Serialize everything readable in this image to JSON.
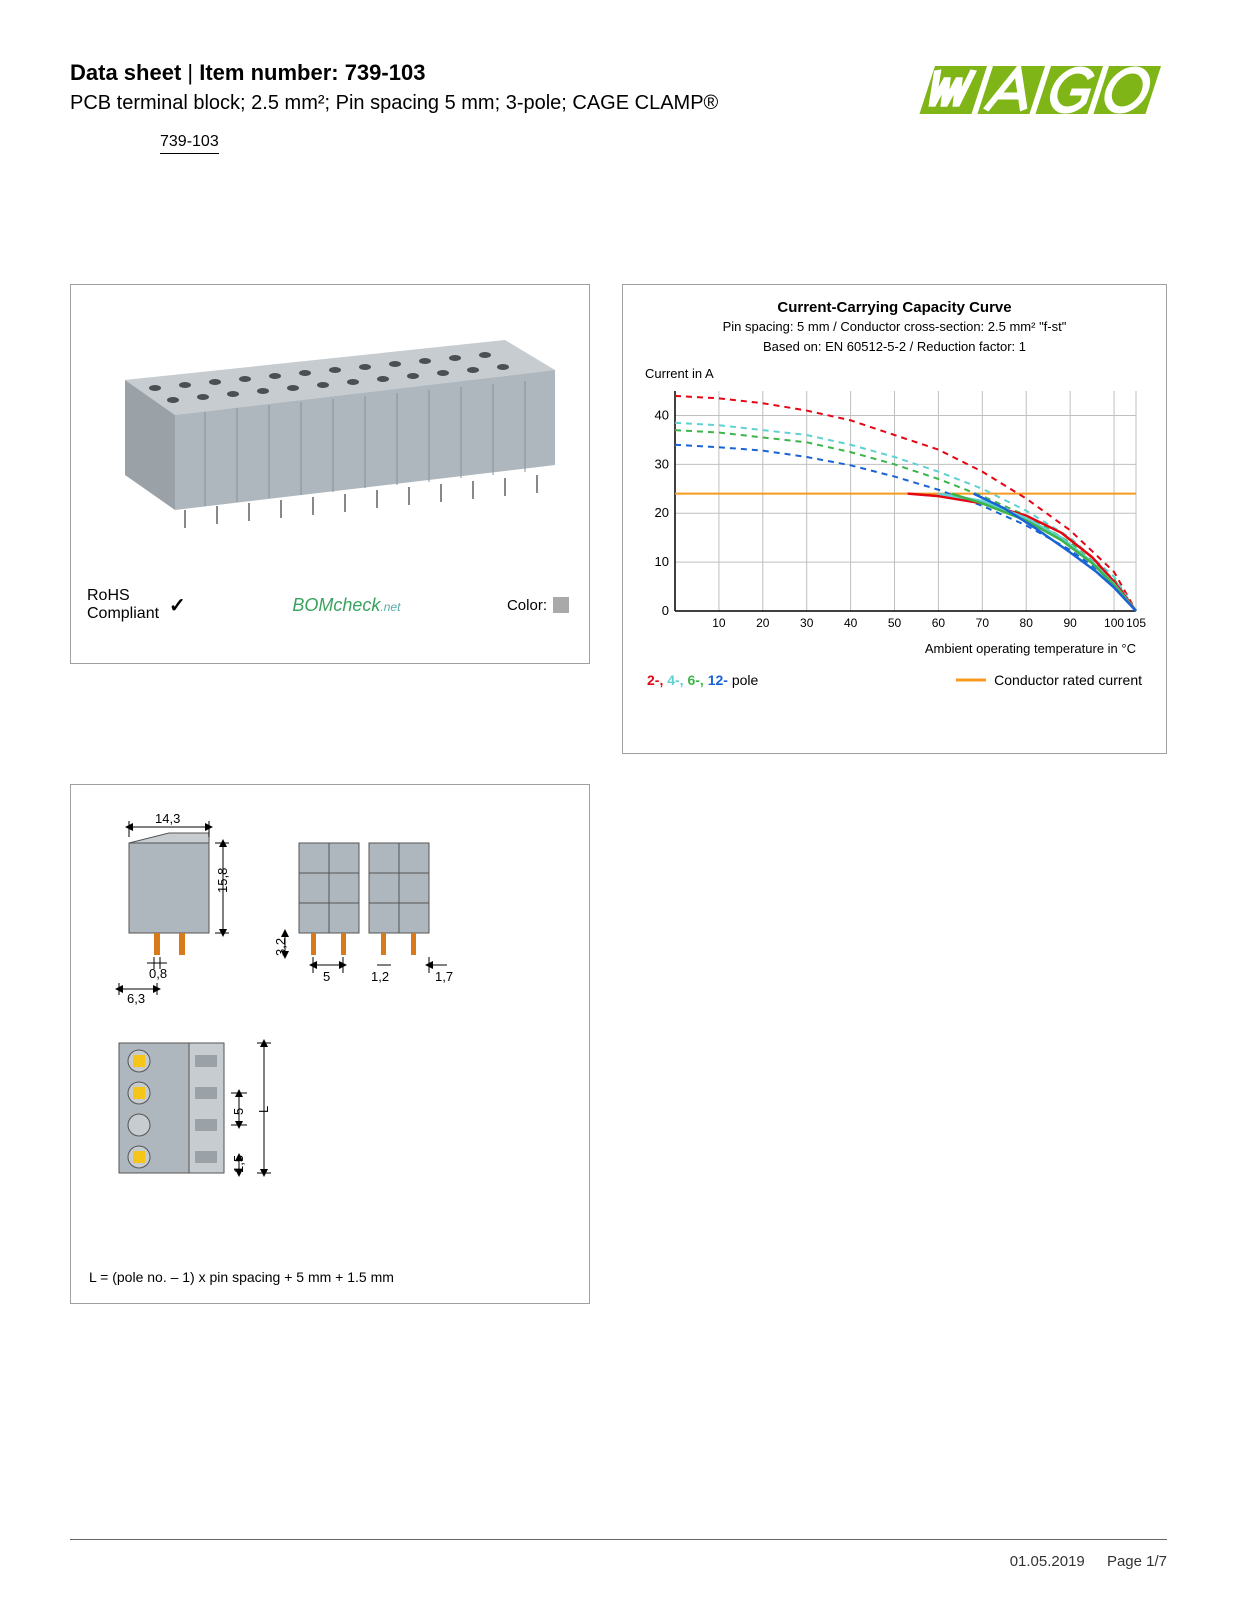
{
  "header": {
    "prefix": "Data sheet",
    "separator": " | ",
    "item_label": "Item number: 739-103",
    "subtitle": "PCB terminal block; 2.5 mm²; Pin spacing 5 mm; 3-pole; CAGE CLAMP®",
    "item_link": "739-103"
  },
  "logo": {
    "text": "WAGO",
    "colors": [
      "#7fb516",
      "#7fb516",
      "#7fb516",
      "#7fb516"
    ]
  },
  "product_panel": {
    "rohs_line1": "RoHS",
    "rohs_line2": "Compliant",
    "bomcheck": "BOMcheck",
    "bomcheck_suffix": ".net",
    "color_label": "Color:",
    "swatch_color": "#a9a9a9",
    "block_color": "#aeb7bd",
    "hole_color": "#4a4f53"
  },
  "chart": {
    "title": "Current-Carrying Capacity Curve",
    "sub1": "Pin spacing: 5 mm / Conductor cross-section: 2.5 mm² \"f-st\"",
    "sub2": "Based on: EN 60512-5-2 / Reduction factor: 1",
    "y_label": "Current in A",
    "x_label": "Ambient operating temperature in °C",
    "ylim": [
      0,
      45
    ],
    "yticks": [
      0,
      10,
      20,
      30,
      40
    ],
    "xlim": [
      0,
      105
    ],
    "xticks": [
      10,
      20,
      30,
      40,
      50,
      60,
      70,
      80,
      90,
      100,
      105
    ],
    "grid_color": "#bfbfbf",
    "axis_color": "#000000",
    "background": "#ffffff",
    "rated_current": 24,
    "rated_color": "#f59a1c",
    "series": [
      {
        "name": "2-pole",
        "color": "#e30613",
        "dash": "6,5",
        "points": [
          [
            0,
            44
          ],
          [
            10,
            43.5
          ],
          [
            20,
            42.5
          ],
          [
            30,
            41
          ],
          [
            40,
            39
          ],
          [
            50,
            36
          ],
          [
            60,
            33
          ],
          [
            70,
            28.5
          ],
          [
            80,
            23
          ],
          [
            90,
            16.5
          ],
          [
            100,
            8
          ],
          [
            105,
            0
          ]
        ]
      },
      {
        "name": "4-pole",
        "color": "#5fd1d1",
        "dash": "6,5",
        "points": [
          [
            0,
            38.5
          ],
          [
            10,
            38
          ],
          [
            20,
            37
          ],
          [
            30,
            36
          ],
          [
            40,
            34
          ],
          [
            50,
            31.5
          ],
          [
            60,
            28.5
          ],
          [
            70,
            25
          ],
          [
            80,
            20.5
          ],
          [
            90,
            15
          ],
          [
            100,
            7
          ],
          [
            105,
            0
          ]
        ]
      },
      {
        "name": "6-pole",
        "color": "#3bb54a",
        "dash": "6,5",
        "points": [
          [
            0,
            37
          ],
          [
            10,
            36.5
          ],
          [
            20,
            35.5
          ],
          [
            30,
            34.5
          ],
          [
            40,
            32.5
          ],
          [
            50,
            30
          ],
          [
            60,
            27
          ],
          [
            70,
            23.5
          ],
          [
            80,
            19.5
          ],
          [
            90,
            14
          ],
          [
            100,
            6.5
          ],
          [
            105,
            0
          ]
        ]
      },
      {
        "name": "12-pole",
        "color": "#1a63d6",
        "dash": "6,5",
        "points": [
          [
            0,
            34
          ],
          [
            10,
            33.5
          ],
          [
            20,
            32.8
          ],
          [
            30,
            31.5
          ],
          [
            40,
            29.8
          ],
          [
            50,
            27.5
          ],
          [
            60,
            24.8
          ],
          [
            70,
            21.5
          ],
          [
            80,
            17.5
          ],
          [
            90,
            12.5
          ],
          [
            100,
            6
          ],
          [
            105,
            0
          ]
        ]
      }
    ],
    "solid_series": [
      {
        "name": "2-pole-solid",
        "color": "#e30613",
        "points": [
          [
            53,
            24
          ],
          [
            60,
            23.5
          ],
          [
            70,
            22
          ],
          [
            80,
            19.5
          ],
          [
            88,
            16
          ],
          [
            95,
            11
          ],
          [
            100,
            6
          ],
          [
            105,
            0
          ]
        ]
      },
      {
        "name": "4-pole-solid",
        "color": "#5fd1d1",
        "points": [
          [
            60,
            24
          ],
          [
            70,
            22.5
          ],
          [
            80,
            19
          ],
          [
            88,
            15
          ],
          [
            95,
            10
          ],
          [
            100,
            5.5
          ],
          [
            105,
            0
          ]
        ]
      },
      {
        "name": "6-pole-solid",
        "color": "#3bb54a",
        "points": [
          [
            63,
            24
          ],
          [
            70,
            22
          ],
          [
            80,
            18.5
          ],
          [
            88,
            14.5
          ],
          [
            95,
            9.8
          ],
          [
            100,
            5.3
          ],
          [
            105,
            0
          ]
        ]
      },
      {
        "name": "12-pole-solid",
        "color": "#1a63d6",
        "points": [
          [
            68,
            24
          ],
          [
            75,
            21
          ],
          [
            82,
            17
          ],
          [
            90,
            12
          ],
          [
            96,
            8
          ],
          [
            100,
            4.8
          ],
          [
            105,
            0
          ]
        ]
      }
    ],
    "legend_poles": [
      {
        "label": "2-,",
        "color": "#e30613"
      },
      {
        "label": " 4-,",
        "color": "#5fd1d1"
      },
      {
        "label": " 6-,",
        "color": "#3bb54a"
      },
      {
        "label": " 12-",
        "color": "#1a63d6"
      }
    ],
    "legend_pole_suffix": " pole",
    "legend_rated": "Conductor rated current"
  },
  "dimensions": {
    "values": {
      "width": "14,3",
      "height": "15,8",
      "pin_h": "3,2",
      "pin_w": "0,8",
      "offset": "6,3",
      "pitch": "5",
      "pin_thick": "1,2",
      "end": "1,7",
      "row_pitch": "5",
      "edge": "1,5",
      "length": "L"
    },
    "formula": "L = (pole no. – 1) x pin spacing + 5 mm + 1.5 mm",
    "block_color": "#aeb7bd",
    "pin_color": "#d97a1a",
    "clamp_color": "#f5c518",
    "dim_line_color": "#000000"
  },
  "footer": {
    "date": "01.05.2019",
    "page": "Page 1/7"
  }
}
